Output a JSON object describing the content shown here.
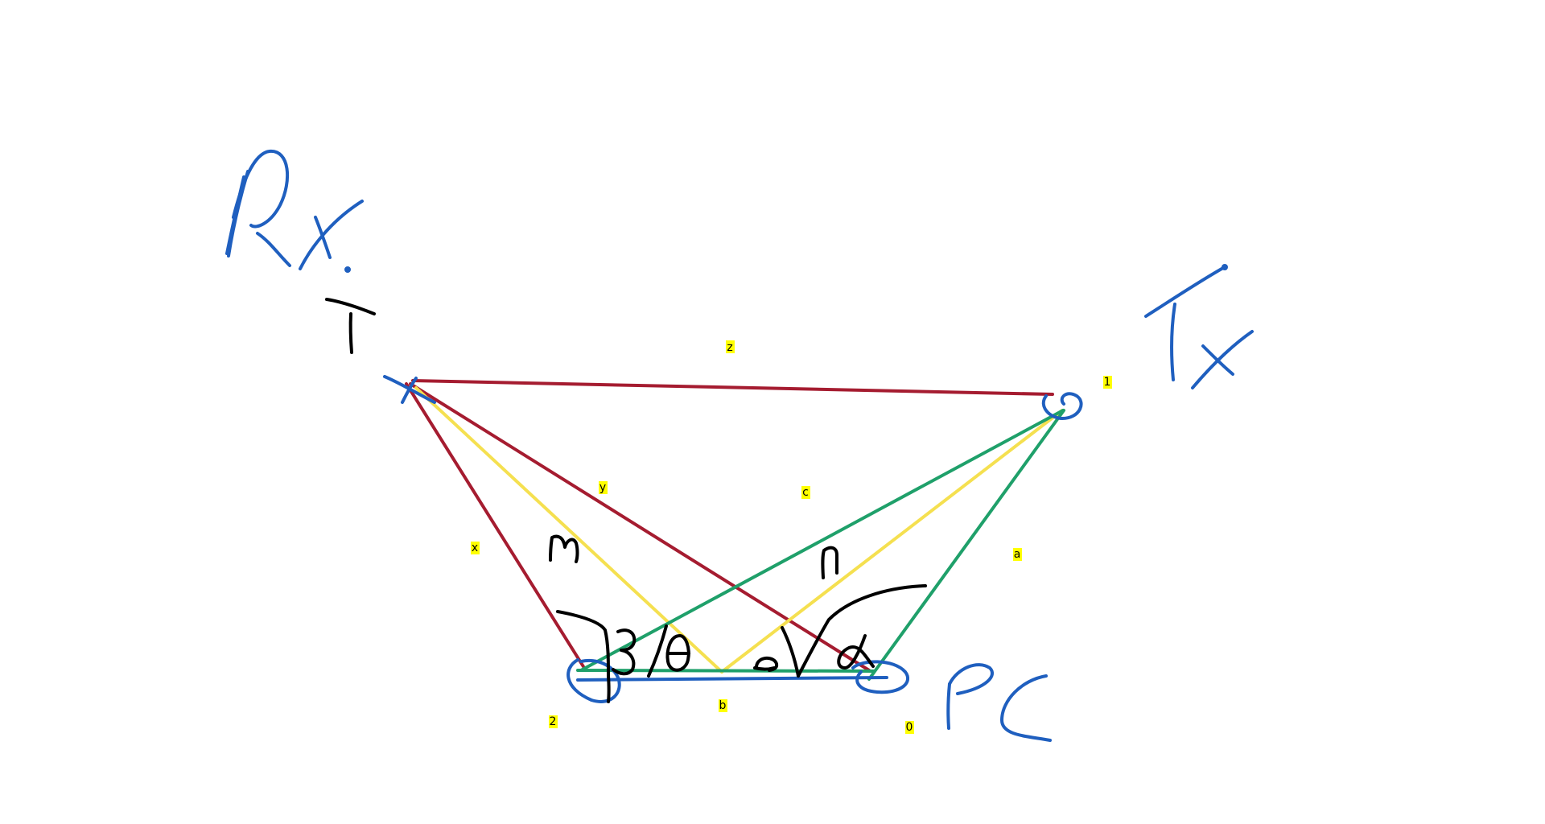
{
  "colors": {
    "red": "#a51c30",
    "yellow": "#f5e050",
    "green": "#1fa06a",
    "blue": "#1f5fbf",
    "black": "#000000",
    "label_bg": "#ffff00"
  },
  "labels": {
    "z": "z",
    "y": "y",
    "c": "c",
    "x": "x",
    "a": "a",
    "b": "b",
    "point_1": "1",
    "point_2": "2",
    "point_0": "0"
  },
  "handwritten": {
    "rx": "Rx.",
    "tx": "Tx",
    "pc": "PC",
    "t": "T",
    "m": "m",
    "n": "n",
    "beta_theta": "β/θ",
    "omega_alpha": "Ω α"
  }
}
